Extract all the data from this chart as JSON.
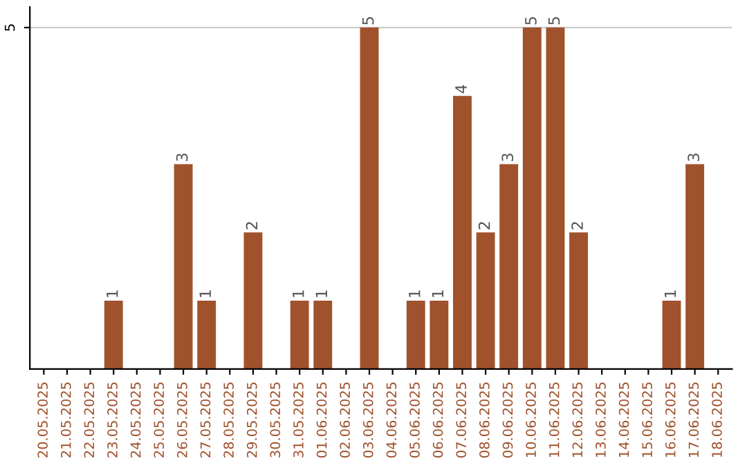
{
  "chart_data": {
    "type": "bar",
    "categories": [
      "20.05.2025",
      "21.05.2025",
      "22.05.2025",
      "23.05.2025",
      "24.05.2025",
      "25.05.2025",
      "26.05.2025",
      "27.05.2025",
      "28.05.2025",
      "29.05.2025",
      "30.05.2025",
      "31.05.2025",
      "01.06.2025",
      "02.06.2025",
      "03.06.2025",
      "04.06.2025",
      "05.06.2025",
      "06.06.2025",
      "07.06.2025",
      "08.06.2025",
      "09.06.2025",
      "10.06.2025",
      "11.06.2025",
      "12.06.2025",
      "13.06.2025",
      "14.06.2025",
      "15.06.2025",
      "16.06.2025",
      "17.06.2025",
      "18.06.2025"
    ],
    "values": [
      0,
      0,
      0,
      1,
      0,
      0,
      3,
      1,
      0,
      2,
      0,
      1,
      1,
      0,
      5,
      0,
      1,
      1,
      4,
      2,
      3,
      5,
      5,
      2,
      0,
      0,
      0,
      1,
      3,
      0
    ],
    "value_labels": [
      null,
      null,
      null,
      "1",
      null,
      null,
      "3",
      "1",
      null,
      "2",
      null,
      "1",
      "1",
      null,
      "5",
      null,
      "1",
      "1",
      "4",
      "2",
      "3",
      "5",
      "5",
      "2",
      null,
      null,
      null,
      "1",
      "3",
      null
    ],
    "color": "#a0522d",
    "ylim": [
      0,
      5.3
    ],
    "yticks": [
      5
    ],
    "grid": "y"
  }
}
